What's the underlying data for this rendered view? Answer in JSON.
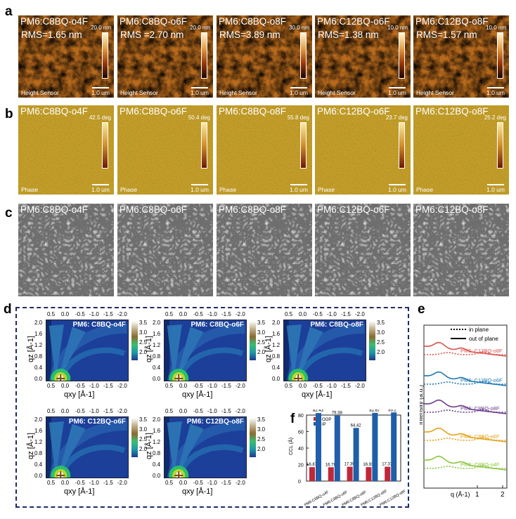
{
  "panel_letters": {
    "a": "a",
    "b": "b",
    "c": "c",
    "d": "d",
    "e": "e",
    "f": "f"
  },
  "row_a": {
    "items": [
      {
        "title": "PM6:C8BQ-o4F",
        "rms": "RMS=1.65 nm",
        "cbar_max": "20.0 nm"
      },
      {
        "title": "PM6:C8BQ-o6F",
        "rms": "RMS =2.70 nm",
        "cbar_max": "20.0 nm"
      },
      {
        "title": "PM6:C8BQ-o8F",
        "rms": "RMS=3.89 nm",
        "cbar_max": "30.0 nm"
      },
      {
        "title": "PM6:C12BQ-o6F",
        "rms": "RMS=1.38 nm",
        "cbar_max": "10.0 nm"
      },
      {
        "title": "PM6:C12BQ-o8F",
        "rms": "RMS=1.57 nm",
        "cbar_max": "10.0 nm"
      }
    ],
    "sensor": "Height Sensor",
    "scale": "1.0 um"
  },
  "row_b": {
    "items": [
      {
        "title": "PM6:C8BQ-o4F",
        "cbar_max": "42.5 deg"
      },
      {
        "title": "PM6:C8BQ-o6F",
        "cbar_max": "50.4 deg"
      },
      {
        "title": "PM6:C8BQ-o8F",
        "cbar_max": "55.8 deg"
      },
      {
        "title": "PM6:C12BQ-o6F",
        "cbar_max": "23.7 deg"
      },
      {
        "title": "PM6:C12BQ-o8F",
        "cbar_max": "25.2 deg"
      }
    ],
    "sensor": "Phase",
    "scale": "1.0 um"
  },
  "row_c": {
    "items": [
      {
        "title": "PM6:C8BQ-o4F"
      },
      {
        "title": "PM6:C8BQ-o6F"
      },
      {
        "title": "PM6:C8BQ-o8F"
      },
      {
        "title": "PM6:C12BQ-o6F"
      },
      {
        "title": "PM6:C12BQ-o8F"
      }
    ]
  },
  "giwaxs": {
    "titles": [
      "PM6: C8BQ-o4F",
      "PM6: C8BQ-o6F",
      "PM6: C8BQ-o8F",
      "PM6: C12BQ-o6F",
      "PM6: C12BQ-o8F"
    ],
    "xlabel": "qxy [Å-1]",
    "ylabel": "qz [Å-1]",
    "xticks": [
      "0.5",
      "0.0",
      "-0.5",
      "-1.0",
      "-1.5",
      "-2.0"
    ],
    "yticks": [
      "2.0",
      "1.6",
      "1.2",
      "0.8",
      "0.4",
      "0.0"
    ],
    "cbar_ticks": [
      "3.5",
      "3.0",
      "2.5",
      "2.0"
    ]
  },
  "colors": {
    "c8_o4f": "#8dc63f",
    "c8_o6f": "#e3a21a",
    "c8_o8f": "#6a3d8f",
    "c12_o6f": "#1f77b4",
    "c12_o8f": "#d9534f",
    "oop": "#c0283a",
    "ip": "#1f5ea8"
  },
  "chart_data": [
    {
      "type": "line",
      "xlabel": "q (Å-1)",
      "ylabel": "Intensity (a.u.)",
      "xticks": [
        "1",
        "2"
      ],
      "legend": [
        "in plane",
        "out of plane"
      ],
      "series": [
        {
          "name": "PM6: C12BQ-o8F",
          "color": "#d9534f"
        },
        {
          "name": "PM6: C12BQ-o6F",
          "color": "#1f77b4"
        },
        {
          "name": "PM6: C8BQ-o8F",
          "color": "#6a3d8f"
        },
        {
          "name": "PM6: C8BQ-o6F",
          "color": "#e3a21a"
        },
        {
          "name": "PM6: C8BQ-o4F",
          "color": "#8dc63f"
        }
      ]
    },
    {
      "type": "bar",
      "ylabel": "CCL (Å)",
      "ylim": [
        0,
        80
      ],
      "yticks": [
        "0",
        "20",
        "40",
        "60",
        "80"
      ],
      "categories": [
        "PM6:C8BQ-o4F",
        "PM6:C8BQ-o6F",
        "PM6:C8BQ-o8F",
        "PM6:C12BQ-o6F",
        "PM6:C12BQ-o8F"
      ],
      "series": [
        {
          "name": "OOP",
          "values": [
            16.87,
            16.78,
            17.39,
            16.93,
            17.37
          ]
        },
        {
          "name": "IP",
          "values": [
            82.43,
            79.38,
            64.42,
            82.67,
            83.2
          ]
        }
      ],
      "labels": [
        [
          "16.87",
          "16.78",
          "17.39",
          "16.93",
          "17.37"
        ],
        [
          "82.43",
          "79.38",
          "64.42",
          "82.67",
          "83.2"
        ]
      ]
    }
  ]
}
